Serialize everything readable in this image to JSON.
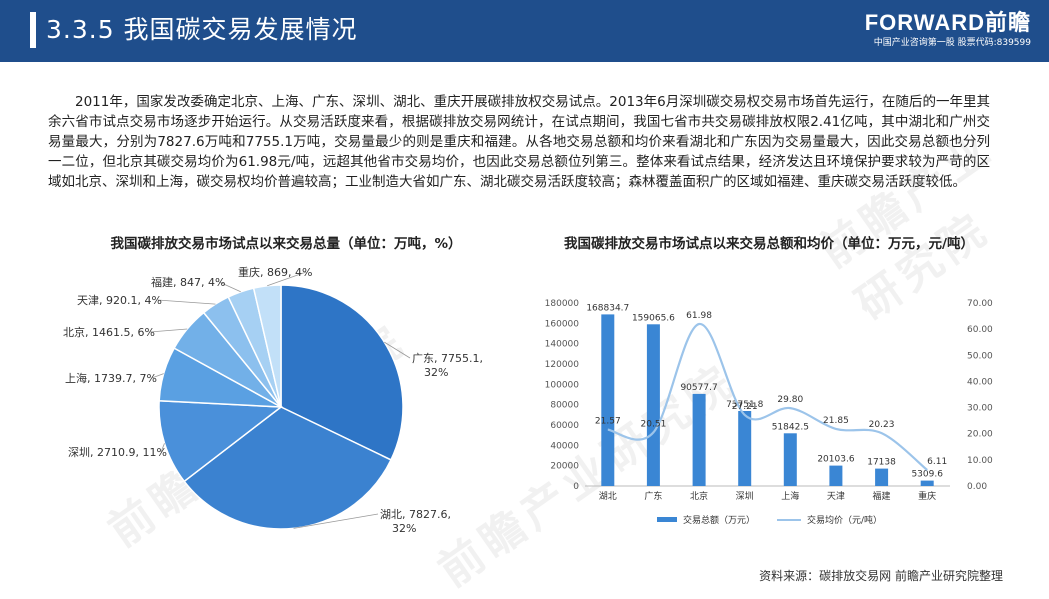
{
  "header": {
    "title": "3.3.5 我国碳交易发展情况",
    "logo_name": "FORWARD前瞻",
    "logo_sub": "中国产业咨询第一股 股票代码:839599"
  },
  "intro": "2011年，国家发改委确定北京、上海、广东、深圳、湖北、重庆开展碳排放权交易试点。2013年6月深圳碳交易权交易市场首先运行，在随后的一年里其余六省市试点交易市场逐步开始运行。从交易活跃度来看，根据碳排放交易网统计，在试点期间，我国七省市共交易碳排放权限2.41亿吨，其中湖北和广州交易量最大，分别为7827.6万吨和7755.1万吨，交易量最少的则是重庆和福建。从各地交易总额和均价来看湖北和广东因为交易量最大，因此交易总额也分列一二位，但北京其碳交易均价为61.98元/吨，远超其他省市交易均价，也因此交易总额位列第三。整体来看试点结果，经济发达且环境保护要求较为严苛的区域如北京、深圳和上海，碳交易权均价普遍较高；工业制造大省如广东、湖北碳交易活跃度较高；森林覆盖面积广的区域如福建、重庆碳交易活跃度较低。",
  "source": "资料来源：碳排放交易网 前瞻产业研究院整理",
  "watermark": "前瞻产业研究院",
  "colors": {
    "header": "#1f4e8c",
    "bar": "#3a86d4",
    "line": "#9cc4ea"
  },
  "chart_data": [
    {
      "type": "pie",
      "title": "我国碳排放交易市场试点以来交易总量（单位：万吨，%）",
      "slices": [
        {
          "name": "广东",
          "value": 7755.1,
          "pct": "32%",
          "label": "广东, 7755.1, 32%",
          "color": "#2e75c6"
        },
        {
          "name": "湖北",
          "value": 7827.6,
          "pct": "32%",
          "label": "湖北, 7827.6, 32%",
          "color": "#3b82d0"
        },
        {
          "name": "深圳",
          "value": 2710.9,
          "pct": "11%",
          "label": "深圳, 2710.9, 11%",
          "color": "#4a90da"
        },
        {
          "name": "上海",
          "value": 1739.7,
          "pct": "7%",
          "label": "上海, 1739.7, 7%",
          "color": "#5aa0e2"
        },
        {
          "name": "北京",
          "value": 1461.5,
          "pct": "6%",
          "label": "北京, 1461.5, 6%",
          "color": "#72b0e8"
        },
        {
          "name": "天津",
          "value": 920.1,
          "pct": "4%",
          "label": "天津, 920.1, 4%",
          "color": "#8cc0ee"
        },
        {
          "name": "福建",
          "value": 847,
          "pct": "4%",
          "label": "福建, 847, 4%",
          "color": "#a6d0f3"
        },
        {
          "name": "重庆",
          "value": 869,
          "pct": "4%",
          "label": "重庆, 869, 4%",
          "color": "#c2e0f8"
        }
      ]
    },
    {
      "type": "bar",
      "title": "我国碳排放交易市场试点以来交易总额和均价（单位：万元，元/吨）",
      "categories": [
        "湖北",
        "广东",
        "北京",
        "深圳",
        "上海",
        "天津",
        "福建",
        "重庆"
      ],
      "series": [
        {
          "name": "交易总额（万元）",
          "type": "bar",
          "axis": "left",
          "values": [
            168834.7,
            159065.6,
            90577.7,
            73751.8,
            51842.5,
            20103.6,
            17138,
            5309.6
          ],
          "labels": [
            "168834.7",
            "159065.6",
            "90577.7",
            "73751.8",
            "51842.5",
            "20103.6",
            "17138",
            "5309.6"
          ]
        },
        {
          "name": "交易均价（元/吨）",
          "type": "line",
          "axis": "right",
          "values": [
            21.57,
            20.51,
            61.98,
            27.21,
            29.8,
            21.85,
            20.23,
            6.11
          ],
          "labels": [
            "21.57",
            "20.51",
            "61.98",
            "27.21",
            "29.80",
            "21.85",
            "20.23",
            "6.11"
          ]
        }
      ],
      "ylim_left": [
        0,
        180000
      ],
      "yticks_left": [
        "0",
        "20000",
        "40000",
        "60000",
        "80000",
        "100000",
        "120000",
        "140000",
        "160000",
        "180000"
      ],
      "ylim_right": [
        0,
        70
      ],
      "yticks_right": [
        "0.00",
        "10.00",
        "20.00",
        "30.00",
        "40.00",
        "50.00",
        "60.00",
        "70.00"
      ],
      "legend": "bottom"
    }
  ]
}
